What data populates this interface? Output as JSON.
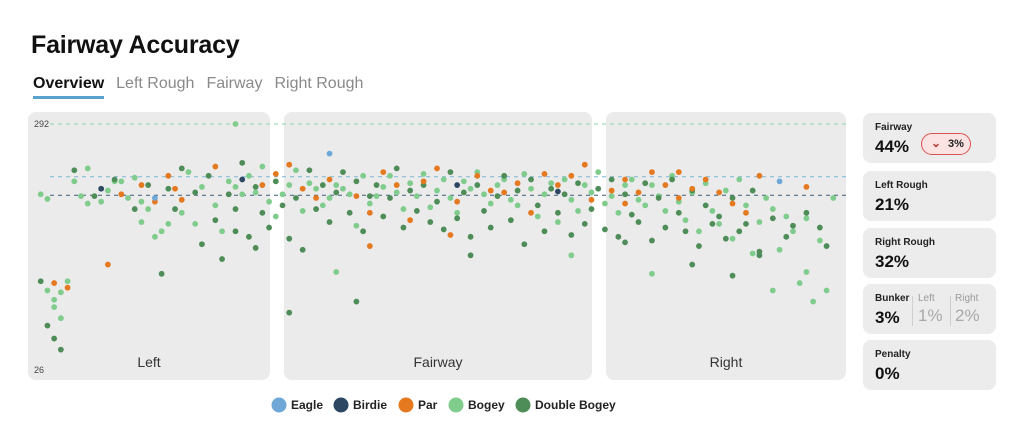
{
  "page": {
    "title": "Fairway Accuracy"
  },
  "tabs": [
    "Overview",
    "Left Rough",
    "Fairway",
    "Right Rough"
  ],
  "active_tab": 0,
  "stats": {
    "fairway": {
      "label": "Fairway",
      "value": "44%",
      "delta": "3%",
      "delta_direction": "down"
    },
    "left_rough": {
      "label": "Left Rough",
      "value": "21%"
    },
    "right_rough": {
      "label": "Right Rough",
      "value": "32%"
    },
    "bunker": {
      "label": "Bunker",
      "value": "3%",
      "left_label": "Left",
      "left_value": "1%",
      "right_label": "Right",
      "right_value": "2%"
    },
    "penalty": {
      "label": "Penalty",
      "value": "0%"
    }
  },
  "chart_data": {
    "type": "scatter",
    "regions": [
      "Left",
      "Fairway",
      "Right"
    ],
    "y_ticks": [
      "292",
      "26"
    ],
    "ylim": [
      26,
      292
    ],
    "x_range": [
      -60,
      60
    ],
    "reference_lines": [
      {
        "y": 292,
        "color": "#8fd1a8"
      },
      {
        "y": 235,
        "color": "#7fb6d6"
      },
      {
        "y": 215,
        "color": "#3f5f7a"
      }
    ],
    "grid": false,
    "legend_position": "bottom",
    "series": [
      {
        "name": "Eagle",
        "color": "#6fa8d6",
        "points": [
          [
            -42,
            212
          ],
          [
            -16,
            260
          ],
          [
            51,
            230
          ]
        ]
      },
      {
        "name": "Birdie",
        "color": "#2d4763",
        "points": [
          [
            -50,
            222
          ],
          [
            -29,
            232
          ],
          [
            3,
            226
          ],
          [
            18,
            219
          ]
        ]
      },
      {
        "name": "Par",
        "color": "#e5791f",
        "points": [
          [
            -57,
            120
          ],
          [
            -55,
            115
          ],
          [
            -49,
            140
          ],
          [
            -47,
            216
          ],
          [
            -44,
            226
          ],
          [
            -42,
            208
          ],
          [
            -40,
            236
          ],
          [
            -39,
            222
          ],
          [
            -38,
            210
          ],
          [
            -26,
            226
          ],
          [
            -24,
            238
          ],
          [
            -22,
            248
          ],
          [
            -20,
            222
          ],
          [
            -18,
            212
          ],
          [
            -16,
            232
          ],
          [
            -12,
            214
          ],
          [
            -10,
            196
          ],
          [
            -8,
            240
          ],
          [
            -6,
            226
          ],
          [
            -4,
            188
          ],
          [
            -2,
            230
          ],
          [
            0,
            244
          ],
          [
            3,
            208
          ],
          [
            6,
            236
          ],
          [
            8,
            220
          ],
          [
            10,
            218
          ],
          [
            12,
            228
          ],
          [
            14,
            196
          ],
          [
            16,
            238
          ],
          [
            18,
            226
          ],
          [
            20,
            236
          ],
          [
            23,
            210
          ],
          [
            26,
            220
          ],
          [
            28,
            232
          ],
          [
            30,
            218
          ],
          [
            32,
            240
          ],
          [
            34,
            226
          ],
          [
            36,
            212
          ],
          [
            38,
            222
          ],
          [
            40,
            232
          ],
          [
            42,
            218
          ],
          [
            44,
            206
          ],
          [
            46,
            196
          ],
          [
            48,
            236
          ],
          [
            55,
            224
          ],
          [
            -10,
            160
          ],
          [
            2,
            172
          ],
          [
            22,
            248
          ],
          [
            -33,
            246
          ],
          [
            36,
            240
          ],
          [
            28,
            206
          ]
        ]
      },
      {
        "name": "Bogey",
        "color": "#7fcc8d",
        "points": [
          [
            -59,
            216
          ],
          [
            -58,
            211
          ],
          [
            -58,
            112
          ],
          [
            -57,
            102
          ],
          [
            -57,
            94
          ],
          [
            -56,
            82
          ],
          [
            -56,
            110
          ],
          [
            -55,
            122
          ],
          [
            -54,
            230
          ],
          [
            -53,
            214
          ],
          [
            -52,
            244
          ],
          [
            -52,
            206
          ],
          [
            -50,
            208
          ],
          [
            -49,
            220
          ],
          [
            -48,
            230
          ],
          [
            -47,
            230
          ],
          [
            -46,
            212
          ],
          [
            -45,
            234
          ],
          [
            -44,
            208
          ],
          [
            -44,
            186
          ],
          [
            -43,
            200
          ],
          [
            -42,
            170
          ],
          [
            -41,
            176
          ],
          [
            -40,
            184
          ],
          [
            -38,
            196
          ],
          [
            -37,
            240
          ],
          [
            -36,
            184
          ],
          [
            -35,
            224
          ],
          [
            -33,
            204
          ],
          [
            -32,
            176
          ],
          [
            -31,
            230
          ],
          [
            -30,
            224
          ],
          [
            -29,
            216
          ],
          [
            -28,
            236
          ],
          [
            -27,
            218
          ],
          [
            -26,
            246
          ],
          [
            -25,
            208
          ],
          [
            -24,
            192
          ],
          [
            -23,
            216
          ],
          [
            -22,
            226
          ],
          [
            -21,
            242
          ],
          [
            -20,
            198
          ],
          [
            -19,
            228
          ],
          [
            -18,
            222
          ],
          [
            -17,
            204
          ],
          [
            -16,
            212
          ],
          [
            -15,
            226
          ],
          [
            -14,
            222
          ],
          [
            -13,
            216
          ],
          [
            -12,
            182
          ],
          [
            -11,
            236
          ],
          [
            -10,
            206
          ],
          [
            -9,
            214
          ],
          [
            -8,
            224
          ],
          [
            -7,
            236
          ],
          [
            -6,
            218
          ],
          [
            -5,
            200
          ],
          [
            -4,
            228
          ],
          [
            -3,
            214
          ],
          [
            -2,
            238
          ],
          [
            -1,
            202
          ],
          [
            0,
            220
          ],
          [
            1,
            232
          ],
          [
            2,
            212
          ],
          [
            3,
            196
          ],
          [
            4,
            230
          ],
          [
            5,
            222
          ],
          [
            6,
            240
          ],
          [
            7,
            216
          ],
          [
            8,
            206
          ],
          [
            9,
            226
          ],
          [
            10,
            232
          ],
          [
            11,
            210
          ],
          [
            12,
            204
          ],
          [
            13,
            238
          ],
          [
            14,
            222
          ],
          [
            15,
            192
          ],
          [
            16,
            216
          ],
          [
            17,
            228
          ],
          [
            18,
            186
          ],
          [
            19,
            232
          ],
          [
            20,
            210
          ],
          [
            21,
            198
          ],
          [
            22,
            226
          ],
          [
            23,
            218
          ],
          [
            24,
            240
          ],
          [
            25,
            206
          ],
          [
            26,
            214
          ],
          [
            27,
            196
          ],
          [
            28,
            226
          ],
          [
            29,
            232
          ],
          [
            30,
            210
          ],
          [
            31,
            204
          ],
          [
            32,
            226
          ],
          [
            33,
            214
          ],
          [
            34,
            198
          ],
          [
            35,
            236
          ],
          [
            36,
            208
          ],
          [
            37,
            188
          ],
          [
            38,
            218
          ],
          [
            39,
            176
          ],
          [
            40,
            228
          ],
          [
            41,
            198
          ],
          [
            42,
            184
          ],
          [
            43,
            220
          ],
          [
            44,
            168
          ],
          [
            45,
            232
          ],
          [
            46,
            204
          ],
          [
            47,
            152
          ],
          [
            48,
            186
          ],
          [
            49,
            212
          ],
          [
            50,
            200
          ],
          [
            51,
            156
          ],
          [
            52,
            192
          ],
          [
            53,
            176
          ],
          [
            54,
            120
          ],
          [
            55,
            190
          ],
          [
            56,
            100
          ],
          [
            57,
            166
          ],
          [
            58,
            112
          ],
          [
            59,
            212
          ],
          [
            -30,
            292
          ],
          [
            -15,
            132
          ],
          [
            20,
            150
          ],
          [
            32,
            130
          ],
          [
            50,
            112
          ],
          [
            55,
            132
          ]
        ]
      },
      {
        "name": "Double Bogey",
        "color": "#4f8d58",
        "points": [
          [
            -59,
            122
          ],
          [
            -58,
            74
          ],
          [
            -57,
            60
          ],
          [
            -56,
            48
          ],
          [
            -54,
            242
          ],
          [
            -51,
            214
          ],
          [
            -48,
            232
          ],
          [
            -45,
            200
          ],
          [
            -43,
            226
          ],
          [
            -41,
            130
          ],
          [
            -40,
            222
          ],
          [
            -39,
            200
          ],
          [
            -38,
            244
          ],
          [
            -36,
            218
          ],
          [
            -35,
            162
          ],
          [
            -34,
            236
          ],
          [
            -33,
            188
          ],
          [
            -32,
            146
          ],
          [
            -31,
            216
          ],
          [
            -30,
            200
          ],
          [
            -29,
            250
          ],
          [
            -28,
            170
          ],
          [
            -27,
            224
          ],
          [
            -26,
            196
          ],
          [
            -25,
            180
          ],
          [
            -24,
            230
          ],
          [
            -23,
            204
          ],
          [
            -22,
            168
          ],
          [
            -21,
            212
          ],
          [
            -20,
            156
          ],
          [
            -19,
            242
          ],
          [
            -18,
            200
          ],
          [
            -17,
            226
          ],
          [
            -16,
            186
          ],
          [
            -15,
            218
          ],
          [
            -14,
            240
          ],
          [
            -13,
            196
          ],
          [
            -12,
            230
          ],
          [
            -11,
            176
          ],
          [
            -10,
            214
          ],
          [
            -9,
            226
          ],
          [
            -8,
            192
          ],
          [
            -7,
            212
          ],
          [
            -6,
            244
          ],
          [
            -5,
            180
          ],
          [
            -4,
            220
          ],
          [
            -3,
            198
          ],
          [
            -2,
            226
          ],
          [
            -1,
            186
          ],
          [
            0,
            208
          ],
          [
            1,
            178
          ],
          [
            2,
            240
          ],
          [
            3,
            190
          ],
          [
            4,
            218
          ],
          [
            5,
            170
          ],
          [
            6,
            226
          ],
          [
            7,
            198
          ],
          [
            8,
            180
          ],
          [
            9,
            214
          ],
          [
            10,
            236
          ],
          [
            11,
            188
          ],
          [
            12,
            220
          ],
          [
            13,
            162
          ],
          [
            14,
            232
          ],
          [
            15,
            204
          ],
          [
            16,
            176
          ],
          [
            17,
            222
          ],
          [
            18,
            196
          ],
          [
            19,
            216
          ],
          [
            20,
            172
          ],
          [
            21,
            228
          ],
          [
            22,
            184
          ],
          [
            23,
            200
          ],
          [
            24,
            222
          ],
          [
            25,
            178
          ],
          [
            26,
            232
          ],
          [
            27,
            170
          ],
          [
            28,
            216
          ],
          [
            29,
            194
          ],
          [
            30,
            186
          ],
          [
            31,
            228
          ],
          [
            32,
            166
          ],
          [
            33,
            212
          ],
          [
            34,
            180
          ],
          [
            35,
            232
          ],
          [
            36,
            196
          ],
          [
            37,
            176
          ],
          [
            38,
            220
          ],
          [
            39,
            160
          ],
          [
            40,
            204
          ],
          [
            41,
            184
          ],
          [
            42,
            192
          ],
          [
            43,
            168
          ],
          [
            44,
            212
          ],
          [
            45,
            176
          ],
          [
            46,
            184
          ],
          [
            47,
            220
          ],
          [
            48,
            154
          ],
          [
            50,
            190
          ],
          [
            52,
            170
          ],
          [
            53,
            182
          ],
          [
            55,
            196
          ],
          [
            57,
            180
          ],
          [
            58,
            160
          ],
          [
            -12,
            100
          ],
          [
            -22,
            88
          ],
          [
            -30,
            176
          ],
          [
            -27,
            158
          ],
          [
            5,
            150
          ],
          [
            28,
            164
          ],
          [
            38,
            140
          ],
          [
            44,
            128
          ],
          [
            48,
            150
          ]
        ]
      }
    ]
  }
}
